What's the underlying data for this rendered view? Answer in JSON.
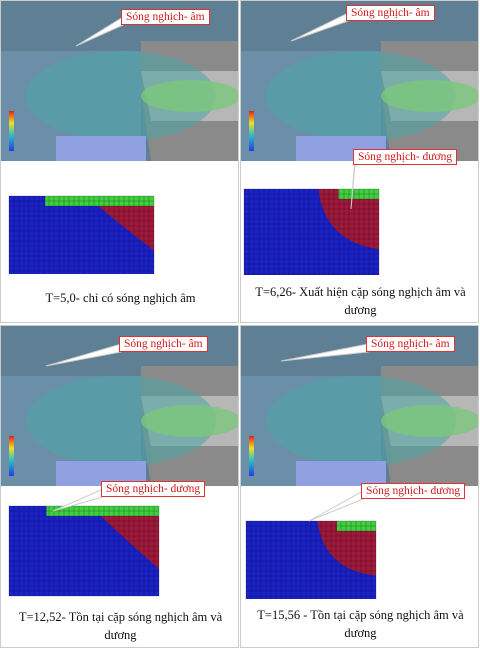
{
  "panels": [
    {
      "callouts": [
        "Sóng nghịch- âm"
      ],
      "caption": "T=5,0- chỉ có sóng nghịch âm"
    },
    {
      "callouts": [
        "Sóng nghịch- âm",
        "Sóng nghịch- dương"
      ],
      "caption": "T=6,26- Xuất hiện cặp sóng nghịch âm và dương"
    },
    {
      "callouts": [
        "Sóng nghịch- âm",
        "Sóng nghịch- dương"
      ],
      "caption": "T=12,52- Tồn tại cặp sóng nghịch âm và dương"
    },
    {
      "callouts": [
        "Sóng nghịch- âm",
        "Sóng nghịch- dương"
      ],
      "caption": "T=15,56 - Tồn tại cặp sóng nghịch âm và dương"
    }
  ]
}
